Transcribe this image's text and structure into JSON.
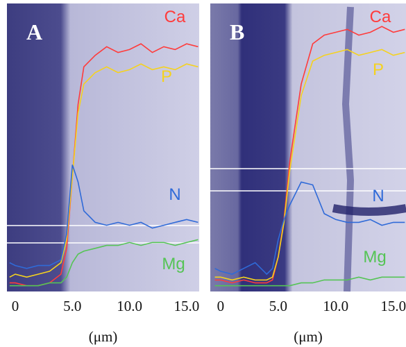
{
  "chart_data": [
    {
      "type": "line",
      "title": "A",
      "xlabel": "(μm)",
      "x": [
        -0.5,
        0,
        1,
        2,
        3,
        4,
        4.5,
        5,
        5.5,
        6,
        7,
        8,
        9,
        10,
        11,
        12,
        13,
        14,
        15,
        16
      ],
      "xlim": [
        -0.73,
        16.1
      ],
      "xticks": [
        0,
        {
          "value": 5,
          "label": "5.0"
        },
        {
          "value": 10,
          "label": "10.0"
        },
        {
          "value": 15,
          "label": "15.0"
        }
      ],
      "ylim": [
        0,
        100
      ],
      "grid": false,
      "series": [
        {
          "name": "Ca",
          "color": "#ff3b3b",
          "values": [
            3,
            3,
            2,
            2,
            3,
            6,
            15,
            40,
            65,
            78,
            82,
            85,
            83,
            84,
            86,
            83,
            85,
            84,
            86,
            85
          ]
        },
        {
          "name": "P",
          "color": "#f5d21e",
          "values": [
            5,
            6,
            5,
            6,
            7,
            10,
            18,
            40,
            62,
            72,
            76,
            78,
            76,
            77,
            79,
            77,
            78,
            77,
            79,
            78
          ]
        },
        {
          "name": "N",
          "color": "#2f6ad8",
          "values": [
            10,
            9,
            8,
            9,
            9,
            11,
            20,
            44,
            38,
            28,
            24,
            23,
            24,
            23,
            24,
            22,
            23,
            24,
            25,
            24
          ]
        },
        {
          "name": "Mg",
          "color": "#55c455",
          "values": [
            2,
            2,
            2,
            2,
            3,
            3,
            5,
            10,
            13,
            14,
            15,
            16,
            16,
            17,
            16,
            17,
            17,
            16,
            17,
            18
          ]
        }
      ]
    },
    {
      "type": "line",
      "title": "B",
      "xlabel": "(μm)",
      "x": [
        -0.5,
        0,
        1,
        2,
        3,
        4,
        4.5,
        5,
        5.5,
        6,
        7,
        8,
        9,
        10,
        11,
        12,
        13,
        14,
        15,
        16
      ],
      "xlim": [
        -0.9,
        16.1
      ],
      "xticks": [
        0,
        {
          "value": 5,
          "label": "5.0"
        },
        {
          "value": 10,
          "label": "10.0"
        },
        {
          "value": 15,
          "label": "15.0"
        }
      ],
      "ylim": [
        0,
        100
      ],
      "grid": false,
      "series": [
        {
          "name": "Ca",
          "color": "#ff3b3b",
          "values": [
            4,
            4,
            3,
            4,
            3,
            3,
            4,
            12,
            25,
            45,
            72,
            86,
            89,
            90,
            91,
            89,
            90,
            92,
            90,
            91
          ]
        },
        {
          "name": "P",
          "color": "#f5d21e",
          "values": [
            5,
            5,
            4,
            5,
            4,
            4,
            5,
            12,
            24,
            42,
            68,
            80,
            82,
            83,
            84,
            82,
            83,
            84,
            82,
            83
          ]
        },
        {
          "name": "N",
          "color": "#2f6ad8",
          "values": [
            8,
            7,
            6,
            8,
            10,
            6,
            8,
            18,
            25,
            30,
            38,
            37,
            27,
            25,
            24,
            24,
            25,
            23,
            24,
            24
          ]
        },
        {
          "name": "Mg",
          "color": "#55c455",
          "values": [
            2,
            2,
            2,
            2,
            2,
            2,
            2,
            2,
            2,
            2,
            3,
            3,
            4,
            4,
            4,
            5,
            4,
            5,
            5,
            5
          ]
        }
      ]
    }
  ]
}
